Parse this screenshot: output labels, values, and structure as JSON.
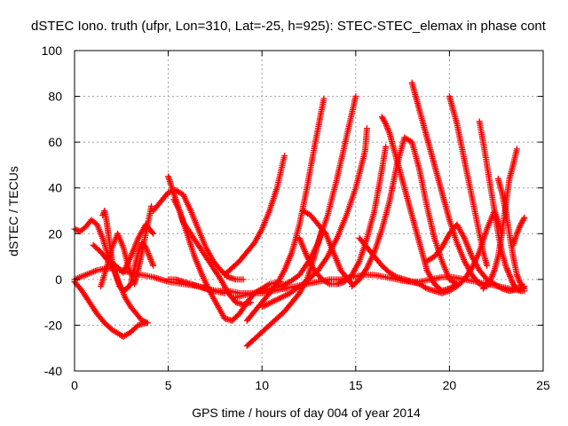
{
  "chart_data": {
    "type": "scatter",
    "title": "dSTEC Iono. truth (ufpr, Lon=310, Lat=-25, h=925): STEC-STEC_elemax in phase cont",
    "xlabel": "GPS time / hours of day 004 of year 2014",
    "ylabel": "dSTEC  / TECUs",
    "xlim": [
      0,
      25
    ],
    "ylim": [
      -40,
      100
    ],
    "xticks": [
      0,
      5,
      10,
      15,
      20,
      25
    ],
    "yticks": [
      -40,
      -20,
      0,
      20,
      40,
      60,
      80,
      100
    ],
    "grid": true,
    "marker": "+",
    "color": "#ff0000",
    "series": [
      {
        "x": [
          0.0,
          0.3,
          0.6,
          0.9,
          1.2,
          1.5,
          1.8,
          2.1,
          2.4,
          2.7,
          3.0,
          3.3,
          3.6,
          3.9
        ],
        "values": [
          22,
          21,
          23,
          26,
          24,
          18,
          10,
          4,
          -2,
          -8,
          -12,
          -15,
          -18,
          -19
        ]
      },
      {
        "x": [
          0.0,
          0.4,
          0.8,
          1.2,
          1.6,
          2.0,
          2.4,
          2.6,
          3.0,
          3.4,
          3.8
        ],
        "values": [
          -1,
          -5,
          -10,
          -15,
          -19,
          -22,
          -24,
          -25,
          -23,
          -20,
          -19
        ]
      },
      {
        "x": [
          0.0,
          0.6,
          1.2,
          1.8,
          2.4,
          3.0,
          3.6,
          4.2,
          5.0,
          5.8,
          6.6,
          7.4,
          8.0
        ],
        "values": [
          0,
          2,
          4,
          5,
          4,
          3,
          2,
          1,
          -1,
          -2,
          -3,
          -5,
          -6
        ]
      },
      {
        "x": [
          1.4,
          1.7,
          2.0,
          2.3,
          2.6,
          2.9,
          3.2,
          3.5,
          3.8,
          4.1
        ],
        "values": [
          -3,
          5,
          14,
          20,
          14,
          5,
          -2,
          8,
          20,
          32
        ]
      },
      {
        "x": [
          1.5,
          1.6,
          1.7,
          1.8,
          1.9,
          2.0,
          2.2,
          2.4,
          2.6,
          2.8,
          3.0,
          3.2,
          3.4,
          3.6,
          3.8,
          4.0,
          4.2
        ],
        "values": [
          28,
          30,
          26,
          20,
          14,
          8,
          2,
          -3,
          -5,
          -4,
          -2,
          5,
          12,
          16,
          14,
          10,
          6
        ]
      },
      {
        "x": [
          1.0,
          1.4,
          1.8,
          2.2,
          2.6,
          3.0,
          3.4,
          3.8,
          4.2
        ],
        "values": [
          15,
          12,
          8,
          6,
          3,
          10,
          18,
          24,
          20
        ]
      },
      {
        "x": [
          4.2,
          4.6,
          5.0,
          5.4,
          5.8,
          6.2,
          6.6,
          7.0,
          7.4,
          7.8,
          8.2,
          8.6,
          9.0
        ],
        "values": [
          30,
          34,
          38,
          39,
          37,
          30,
          22,
          14,
          8,
          4,
          1,
          0,
          0
        ]
      },
      {
        "x": [
          5.0,
          5.2,
          5.4,
          5.6,
          5.8,
          6.2,
          6.6,
          7.0,
          7.4,
          7.8,
          8.2,
          8.6,
          9.0,
          9.4
        ],
        "values": [
          45,
          40,
          35,
          30,
          25,
          20,
          15,
          10,
          5,
          0,
          -6,
          -10,
          -11,
          -10
        ]
      },
      {
        "x": [
          5.3,
          5.6,
          6.0,
          6.4,
          6.8,
          7.2,
          7.6,
          8.0,
          8.4,
          8.8,
          9.2,
          9.6,
          10.0,
          10.4,
          11.0
        ],
        "values": [
          35,
          30,
          20,
          10,
          2,
          -5,
          -11,
          -17,
          -18,
          -15,
          -10,
          -6,
          -4,
          -2,
          -1
        ]
      },
      {
        "x": [
          8.0,
          8.4,
          8.8,
          9.2,
          9.6,
          10.0,
          10.4,
          10.8,
          11.2
        ],
        "values": [
          2,
          5,
          8,
          12,
          16,
          22,
          30,
          40,
          54
        ]
      },
      {
        "x": [
          9.2,
          9.6,
          10.0,
          10.4,
          10.8,
          11.2,
          11.6,
          12.0,
          12.4,
          12.8,
          13.3
        ],
        "values": [
          -18,
          -14,
          -10,
          -6,
          -2,
          4,
          12,
          24,
          40,
          58,
          79
        ]
      },
      {
        "x": [
          9.2,
          9.6,
          10.0,
          10.4,
          10.8,
          11.2,
          11.6,
          12.0,
          12.4,
          12.8,
          13.2
        ],
        "values": [
          -29,
          -26,
          -23,
          -20,
          -17,
          -14,
          -10,
          -6,
          0,
          10,
          22
        ]
      },
      {
        "x": [
          8.5,
          9.0,
          9.5,
          10.0,
          10.5,
          11.0,
          11.5,
          12.0,
          12.5,
          13.0,
          13.5,
          14.0,
          14.5,
          15.0
        ],
        "values": [
          -8,
          -7,
          -6,
          -5,
          -4,
          -3,
          -1,
          2,
          8,
          16,
          28,
          44,
          62,
          80
        ]
      },
      {
        "x": [
          10.0,
          10.5,
          11.0,
          11.5,
          12.0,
          12.5,
          13.0,
          13.5,
          14.0,
          14.5,
          15.0,
          15.5,
          15.6
        ],
        "values": [
          -12,
          -10,
          -8,
          -6,
          -3,
          0,
          4,
          10,
          18,
          28,
          40,
          56,
          66
        ]
      },
      {
        "x": [
          12.0,
          12.4,
          12.8,
          13.2,
          13.6,
          14.0,
          14.4,
          14.8,
          15.2,
          15.6,
          16.0,
          16.4,
          16.6
        ],
        "values": [
          18,
          10,
          4,
          0,
          -2,
          -2,
          -1,
          2,
          8,
          18,
          30,
          48,
          58
        ]
      },
      {
        "x": [
          12.2,
          12.6,
          13.0,
          13.4,
          13.8,
          14.2,
          14.6,
          14.8
        ],
        "values": [
          30,
          28,
          24,
          20,
          12,
          4,
          0,
          -2
        ]
      },
      {
        "x": [
          15.2,
          15.6,
          16.0,
          16.4,
          16.8,
          17.2,
          17.6,
          18.0,
          18.4,
          18.8,
          19.2,
          19.6,
          20.0,
          20.4,
          20.8,
          21.2,
          21.6,
          22.0,
          22.4,
          22.8
        ],
        "values": [
          18,
          14,
          10,
          6,
          3,
          1,
          0,
          -1,
          -2,
          -4,
          -5,
          -6,
          -5,
          -3,
          0,
          5,
          12,
          22,
          30,
          20
        ]
      },
      {
        "x": [
          16.4,
          16.6,
          16.8,
          17.0,
          17.2,
          17.4,
          17.6,
          17.8,
          18.0,
          18.2,
          18.4,
          18.6,
          18.8,
          19.2,
          19.6,
          20.0,
          20.4
        ],
        "values": [
          71,
          68,
          64,
          58,
          52,
          46,
          40,
          34,
          28,
          22,
          16,
          10,
          4,
          -2,
          -5,
          -4,
          -2
        ]
      },
      {
        "x": [
          14.8,
          15.2,
          15.6,
          16.0,
          16.4,
          16.8,
          17.2,
          17.6,
          18.0,
          18.4,
          18.8,
          19.2,
          19.6,
          20.0,
          20.4
        ],
        "values": [
          -3,
          0,
          5,
          12,
          22,
          34,
          50,
          62,
          60,
          48,
          32,
          18,
          8,
          0,
          -2
        ]
      },
      {
        "x": [
          18.0,
          18.2,
          18.4,
          18.6,
          18.8,
          19.0,
          19.2,
          19.4,
          19.6,
          19.8,
          20.0,
          20.4,
          20.8,
          21.2,
          21.6,
          22.0
        ],
        "values": [
          86,
          80,
          74,
          68,
          62,
          56,
          50,
          44,
          38,
          32,
          26,
          16,
          8,
          2,
          -2,
          -3
        ]
      },
      {
        "x": [
          18.8,
          19.2,
          19.6,
          20.0,
          20.4,
          20.8,
          21.2,
          21.6,
          22.0,
          22.4,
          22.8,
          23.2,
          23.6,
          24.0
        ],
        "values": [
          8,
          10,
          14,
          20,
          24,
          18,
          10,
          4,
          0,
          -2,
          -4,
          -5,
          -4,
          -3
        ]
      },
      {
        "x": [
          20.0,
          20.2,
          20.4,
          20.6,
          20.8,
          21.0,
          21.2,
          21.4,
          21.6,
          21.8,
          22.0
        ],
        "values": [
          80,
          74,
          68,
          60,
          52,
          44,
          36,
          28,
          20,
          12,
          6
        ]
      },
      {
        "x": [
          21.6,
          21.8,
          22.0,
          22.2,
          22.4,
          22.6,
          22.8,
          23.0,
          23.2,
          23.4,
          23.6,
          23.8,
          24.0
        ],
        "values": [
          69,
          60,
          50,
          40,
          30,
          20,
          12,
          6,
          2,
          -2,
          -4,
          -5,
          -5
        ]
      },
      {
        "x": [
          21.8,
          22.0,
          22.2,
          22.4,
          22.6,
          22.8,
          23.0,
          23.2,
          23.4,
          23.6
        ],
        "values": [
          -4,
          -2,
          0,
          4,
          10,
          20,
          32,
          44,
          50,
          57
        ]
      },
      {
        "x": [
          22.6,
          22.8,
          23.0,
          23.2,
          23.4,
          23.6,
          23.8,
          24.0
        ],
        "values": [
          44,
          38,
          30,
          20,
          10,
          2,
          -2,
          -4
        ]
      },
      {
        "x": [
          23.4,
          23.6,
          23.8,
          24.0
        ],
        "values": [
          15,
          20,
          24,
          27
        ]
      },
      {
        "x": [
          5.0,
          5.4,
          5.8,
          6.2,
          6.6,
          7.0,
          7.6,
          8.2,
          8.8,
          9.4,
          10.0,
          10.6,
          11.2,
          11.8,
          12.4,
          13.0,
          13.6,
          14.2,
          14.8,
          15.4,
          16.0,
          16.6,
          17.2,
          17.8,
          18.4,
          19.0,
          19.6,
          20.2,
          20.8,
          21.4,
          22.0,
          22.6,
          23.2,
          23.8
        ],
        "values": [
          0,
          0,
          -1,
          -2,
          -3,
          -4,
          -5,
          -5,
          -6,
          -6,
          -6,
          -5,
          -4,
          -3,
          -2,
          -1,
          0,
          0,
          1,
          2,
          2,
          1,
          0,
          -1,
          -1,
          0,
          1,
          1,
          0,
          -1,
          -2,
          -3,
          -4,
          -5
        ]
      }
    ]
  }
}
